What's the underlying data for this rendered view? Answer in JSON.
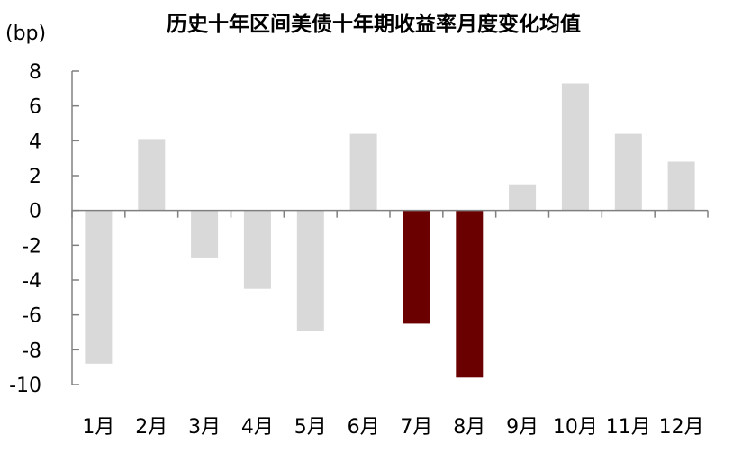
{
  "chart_data": {
    "type": "bar",
    "title": "历史十年区间美债十年期收益率月度变化均值",
    "unit_label": "(bp)",
    "categories": [
      "1月",
      "2月",
      "3月",
      "4月",
      "5月",
      "6月",
      "7月",
      "8月",
      "9月",
      "10月",
      "11月",
      "12月"
    ],
    "values": [
      -8.8,
      4.1,
      -2.7,
      -4.5,
      -6.9,
      4.4,
      -6.5,
      -9.6,
      1.5,
      7.3,
      4.4,
      2.8
    ],
    "highlighted": [
      "7月",
      "8月"
    ],
    "y_ticks": [
      "8",
      "6",
      "4",
      "2",
      "0",
      "-2",
      "-4",
      "-6",
      "-8",
      "-10"
    ],
    "ylim": [
      -10,
      8
    ],
    "grid": false,
    "colors": {
      "bar": "#d9d9d9",
      "highlight": "#6b0000",
      "axis": "#808080"
    }
  }
}
